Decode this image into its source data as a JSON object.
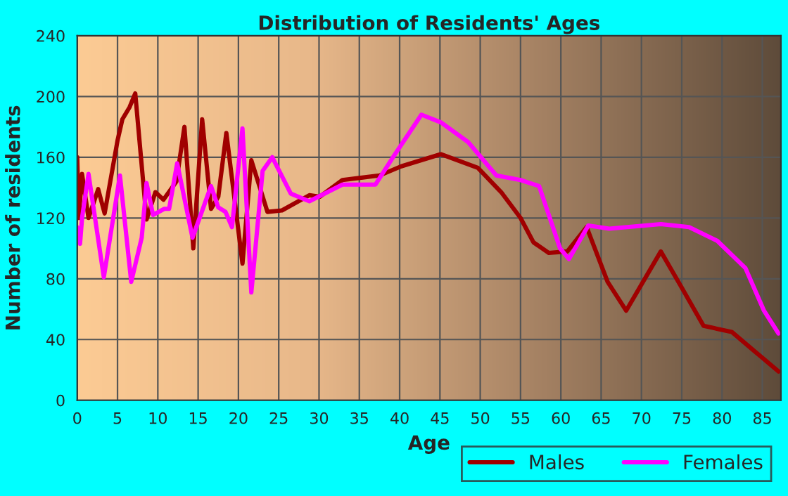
{
  "chart_data": {
    "type": "line",
    "title": "Distribution of Residents' Ages",
    "xlabel": "Age",
    "ylabel": "Number of residents",
    "xlim": [
      0,
      87.3
    ],
    "ylim": [
      0,
      240
    ],
    "xticks": [
      0,
      5,
      10,
      15,
      20,
      25,
      30,
      35,
      40,
      45,
      50,
      55,
      60,
      65,
      70,
      75,
      80,
      85
    ],
    "yticks": [
      0,
      40,
      80,
      120,
      160,
      200,
      240
    ],
    "grid": true,
    "legend": "bottom right",
    "marker": "none",
    "line_style": "solid",
    "series": [
      {
        "name": "Males",
        "color": "#a00000",
        "x": [
          0,
          0.2,
          0.6,
          1.4,
          2.6,
          3.4,
          5,
          5.6,
          6.5,
          7.2,
          8.6,
          9.7,
          10.7,
          12.3,
          13.3,
          14.4,
          15.5,
          16.6,
          17.5,
          18.5,
          20.5,
          21.6,
          23.6,
          25.4,
          28.8,
          30.1,
          32.9,
          37.5,
          40.2,
          45.1,
          49.7,
          52.6,
          55,
          56.6,
          58.5,
          60.8,
          63.2,
          65.8,
          68.1,
          72.4,
          74.8,
          77.7,
          81.2,
          84.1,
          87
        ],
        "values": [
          160,
          120,
          149,
          120,
          139,
          123,
          171,
          185,
          193,
          202,
          119,
          137,
          132,
          144,
          180,
          100,
          185,
          126,
          134,
          176,
          90,
          158,
          124,
          125,
          135,
          134,
          145,
          148,
          154,
          162,
          153,
          137,
          120,
          104,
          97,
          98,
          114,
          78,
          59,
          98,
          76,
          49,
          45,
          32,
          19
        ]
      },
      {
        "name": "Females",
        "color": "#ff00ff",
        "x": [
          0,
          0.35,
          0.6,
          1.4,
          3.3,
          5.3,
          6.7,
          8,
          8.6,
          9.4,
          10.8,
          11.4,
          12.4,
          14.3,
          16.6,
          17.5,
          18.4,
          19.2,
          20.5,
          21.6,
          23,
          24.2,
          26.5,
          28.8,
          32.9,
          37,
          39.3,
          42.7,
          45.1,
          48.5,
          52,
          55,
          57.3,
          59.9,
          61,
          63.4,
          66,
          72.4,
          75.9,
          79.4,
          82.9,
          85.2,
          87
        ],
        "values": [
          114,
          103,
          120,
          149,
          81,
          148,
          78,
          107,
          143,
          122,
          126,
          126,
          156,
          107,
          141,
          127,
          124,
          114,
          179,
          71,
          151,
          160,
          136,
          131,
          142,
          142,
          161,
          188,
          183,
          170,
          148,
          145,
          141,
          100,
          93,
          115,
          113,
          116,
          114,
          105,
          87,
          59,
          44
        ]
      }
    ]
  }
}
